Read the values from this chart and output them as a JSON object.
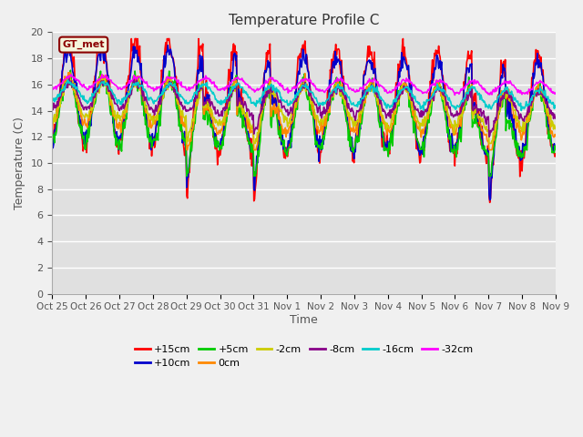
{
  "title": "Temperature Profile C",
  "xlabel": "Time",
  "ylabel": "Temperature (C)",
  "ylim": [
    0,
    20
  ],
  "yticks": [
    0,
    2,
    4,
    6,
    8,
    10,
    12,
    14,
    16,
    18,
    20
  ],
  "xtick_labels": [
    "Oct 25",
    "Oct 26",
    "Oct 27",
    "Oct 28",
    "Oct 29",
    "Oct 30",
    "Oct 31",
    "Nov 1",
    "Nov 2",
    "Nov 3",
    "Nov 4",
    "Nov 5",
    "Nov 6",
    "Nov 7",
    "Nov 8",
    "Nov 9"
  ],
  "legend_label": "GT_met",
  "series_labels": [
    "+15cm",
    "+10cm",
    "+5cm",
    "0cm",
    "-2cm",
    "-8cm",
    "-16cm",
    "-32cm"
  ],
  "series_colors": [
    "#ff0000",
    "#0000cc",
    "#00cc00",
    "#ff8800",
    "#cccc00",
    "#880088",
    "#00cccc",
    "#ff00ff"
  ],
  "background_color": "#e0e0e0",
  "linewidth": 1.2
}
